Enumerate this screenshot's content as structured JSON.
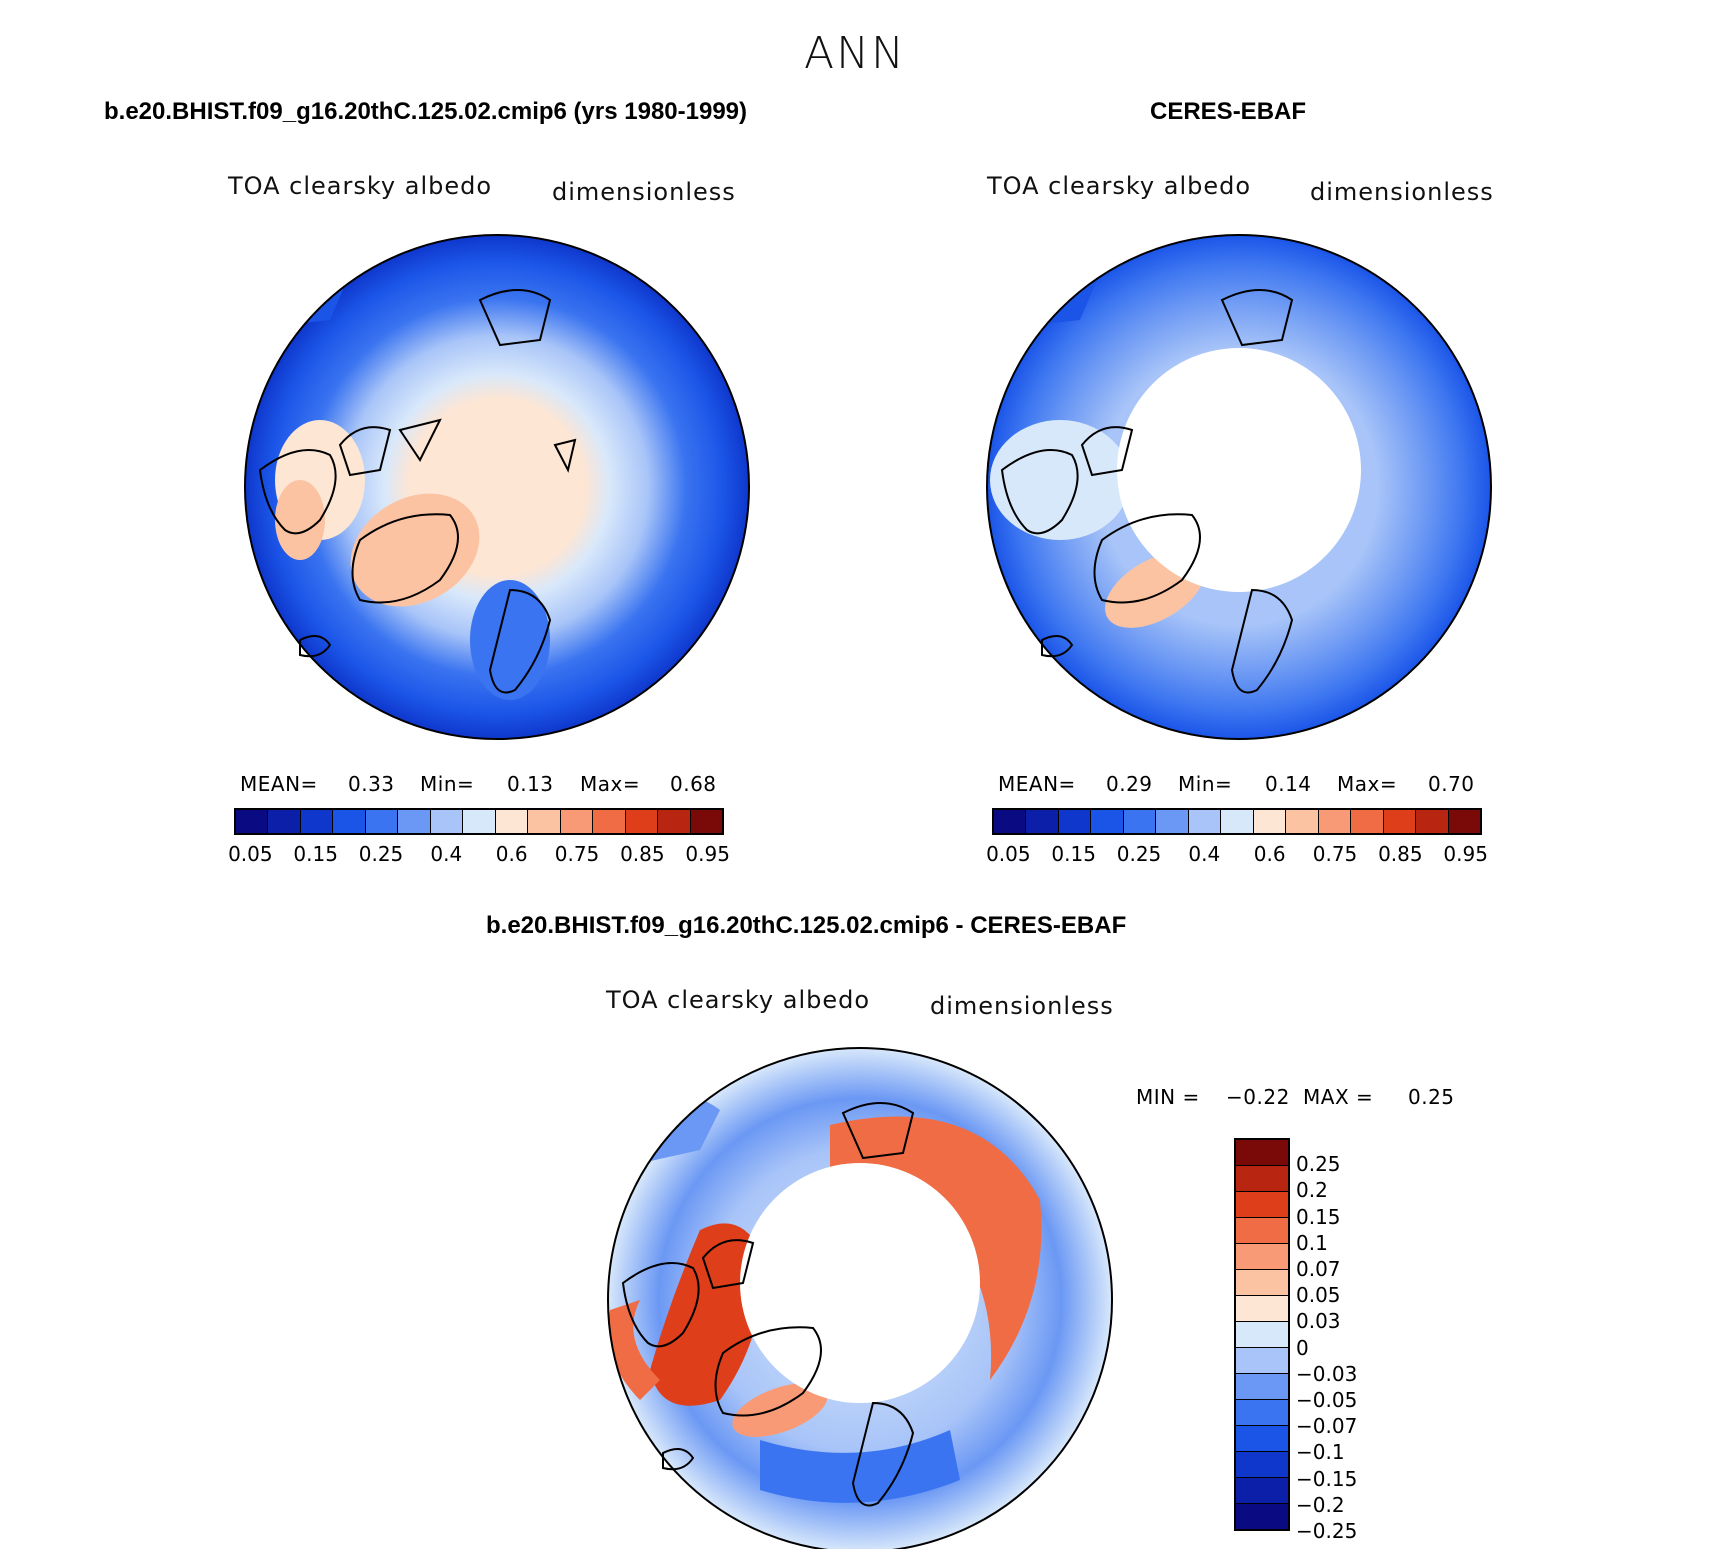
{
  "figure_title": "ANN",
  "panels": [
    {
      "title": "b.e20.BHIST.f09_g16.20thC.125.02.cmip6 (yrs 1980-1999)",
      "variable": "TOA clearsky albedo",
      "units": "dimensionless",
      "mean_label": "MEAN=",
      "mean": "0.33",
      "min_label": "Min=",
      "min": "0.13",
      "max_label": "Max=",
      "max": "0.68"
    },
    {
      "title": "CERES-EBAF",
      "variable": "TOA clearsky albedo",
      "units": "dimensionless",
      "mean_label": "MEAN=",
      "mean": "0.29",
      "min_label": "Min=",
      "min": "0.14",
      "max_label": "Max=",
      "max": "0.70"
    },
    {
      "title": "b.e20.BHIST.f09_g16.20thC.125.02.cmip6 - CERES-EBAF",
      "variable": "TOA clearsky albedo",
      "units": "dimensionless",
      "min_label": "MIN =",
      "min": "−0.22",
      "max_label": "MAX =",
      "max": "0.25"
    }
  ],
  "colorbar_abs": {
    "colors": [
      "#0a0a82",
      "#0b1fa8",
      "#0f37cc",
      "#1b55e8",
      "#3a74f0",
      "#6b98f4",
      "#a8c4f8",
      "#d8e8fb",
      "#fde6d4",
      "#fcc3a3",
      "#f89a75",
      "#f06c44",
      "#de3e1a",
      "#b82612",
      "#7a0a08"
    ],
    "labels": [
      "0.05",
      "0.15",
      "0.25",
      "0.4",
      "0.6",
      "0.75",
      "0.85",
      "0.95"
    ]
  },
  "colorbar_diff": {
    "colors": [
      "#7a0a08",
      "#b82612",
      "#de3e1a",
      "#f06c44",
      "#f89a75",
      "#fcc3a3",
      "#fde6d4",
      "#d8e8fb",
      "#a8c4f8",
      "#6b98f4",
      "#3a74f0",
      "#1b55e8",
      "#0f37cc",
      "#0b1fa8",
      "#0a0a82"
    ],
    "labels": [
      "0.25",
      "0.2",
      "0.15",
      "0.1",
      "0.07",
      "0.05",
      "0.03",
      "0",
      "−0.03",
      "−0.05",
      "−0.07",
      "−0.1",
      "−0.15",
      "−0.2",
      "−0.25"
    ]
  },
  "chart_data": [
    {
      "type": "heatmap",
      "title": "b.e20.BHIST.f09_g16.20thC.125.02.cmip6 (yrs 1980-1999)",
      "field": "TOA clearsky albedo",
      "units": "dimensionless",
      "projection": "north polar stereographic",
      "mean": 0.33,
      "min": 0.13,
      "max": 0.68,
      "levels": [
        0.05,
        0.1,
        0.15,
        0.2,
        0.25,
        0.3,
        0.4,
        0.5,
        0.6,
        0.7,
        0.75,
        0.8,
        0.85,
        0.9,
        0.95
      ]
    },
    {
      "type": "heatmap",
      "title": "CERES-EBAF",
      "field": "TOA clearsky albedo",
      "units": "dimensionless",
      "projection": "north polar stereographic",
      "mean": 0.29,
      "min": 0.14,
      "max": 0.7,
      "levels": [
        0.05,
        0.1,
        0.15,
        0.2,
        0.25,
        0.3,
        0.4,
        0.5,
        0.6,
        0.7,
        0.75,
        0.8,
        0.85,
        0.9,
        0.95
      ]
    },
    {
      "type": "heatmap",
      "title": "b.e20.BHIST.f09_g16.20thC.125.02.cmip6 - CERES-EBAF",
      "field": "TOA clearsky albedo",
      "units": "dimensionless",
      "projection": "north polar stereographic",
      "min": -0.22,
      "max": 0.25,
      "levels": [
        -0.25,
        -0.2,
        -0.15,
        -0.1,
        -0.07,
        -0.05,
        -0.03,
        0,
        0.03,
        0.05,
        0.07,
        0.1,
        0.15,
        0.2,
        0.25
      ]
    }
  ]
}
